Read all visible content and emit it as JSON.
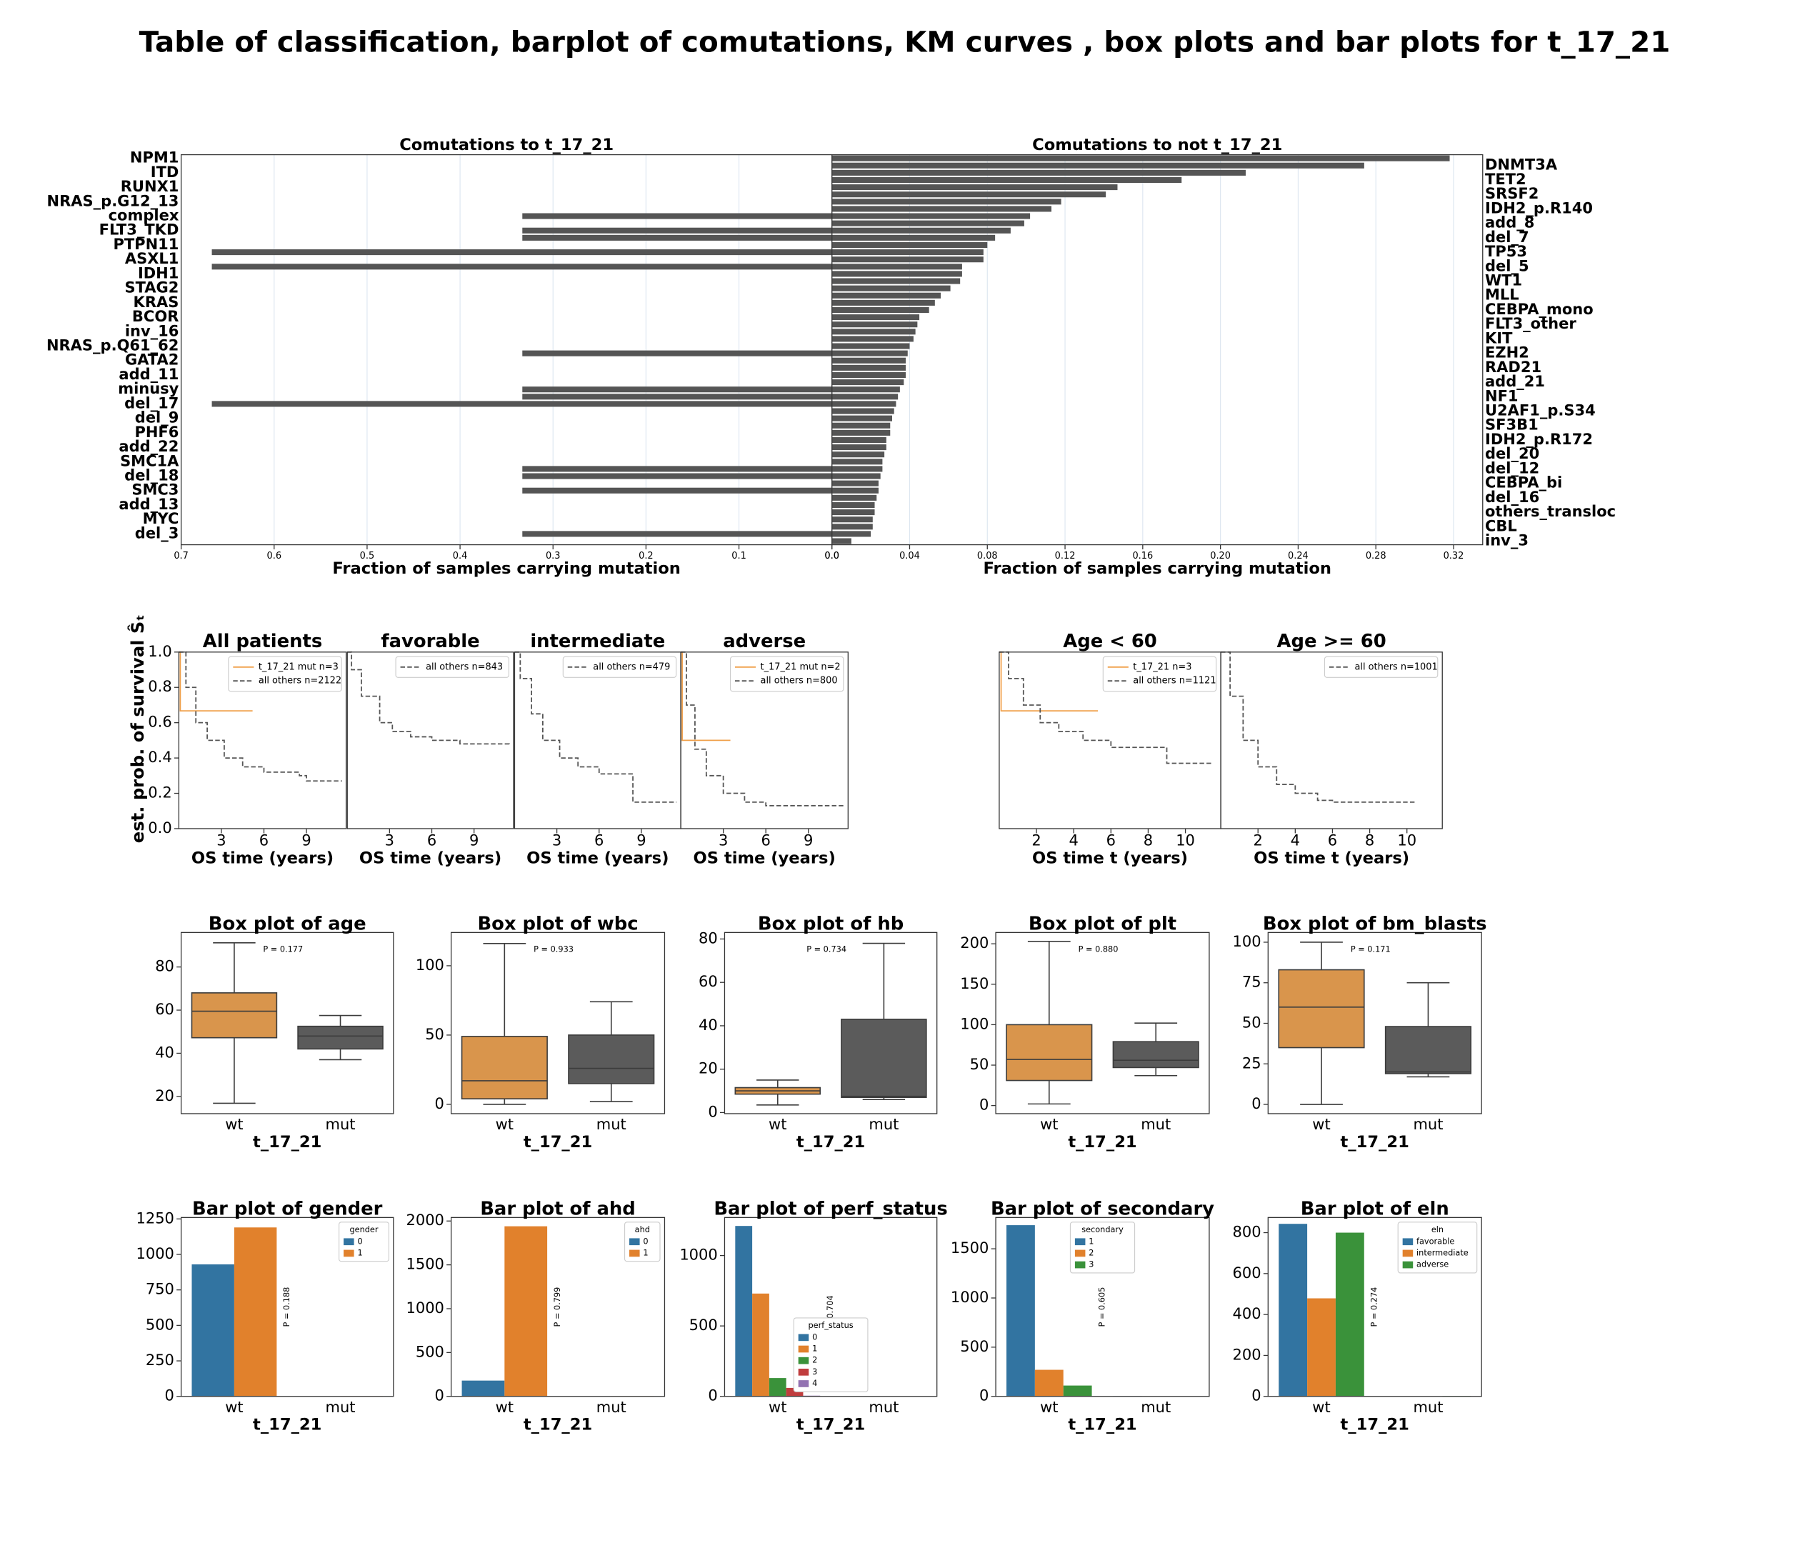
{
  "title": "Table of classification, barplot of comutations, KM curves , box plots and bar plots for t_17_21",
  "chart_data": [
    {
      "type": "comutation",
      "categories": [
        "NPM1",
        "DNMT3A",
        "ITD",
        "TET2",
        "RUNX1",
        "SRSF2",
        "NRAS_p.G12_13",
        "IDH2_p.R140",
        "complex",
        "add_8",
        "FLT3_TKD",
        "del_7",
        "PTPN11",
        "TP53",
        "ASXL1",
        "del_5",
        "IDH1",
        "WT1",
        "STAG2",
        "MLL",
        "KRAS",
        "CEBPA_mono",
        "BCOR",
        "FLT3_other",
        "inv_16",
        "KIT",
        "NRAS_p.Q61_62",
        "EZH2",
        "GATA2",
        "RAD21",
        "add_11",
        "add_21",
        "minusy",
        "NF1",
        "del_17",
        "U2AF1_p.S34",
        "del_9",
        "SF3B1",
        "PHF6",
        "IDH2_p.R172",
        "add_22",
        "del_20",
        "SMC1A",
        "del_12",
        "del_18",
        "CEBPA_bi",
        "SMC3",
        "del_16",
        "add_13",
        "others_transloc",
        "MYC",
        "CBL",
        "del_3",
        "inv_3"
      ],
      "color": "#555555",
      "left": {
        "title": "Comutations to t_17_21",
        "xlabel": "Fraction of samples carrying mutation",
        "xlim": [
          0.7,
          0
        ],
        "xticks": [
          0.7,
          0.6,
          0.5,
          0.4,
          0.3,
          0.2,
          0.1,
          {
            "value": 0,
            "label": "0.0"
          }
        ],
        "values": [
          0,
          0,
          0,
          0,
          0,
          0,
          0,
          0,
          0.333,
          0,
          0.333,
          0.333,
          0,
          0.667,
          0,
          0.667,
          0,
          0,
          0,
          0,
          0,
          0,
          0,
          0,
          0,
          0,
          0,
          0.333,
          0,
          0,
          0,
          0,
          0.333,
          0.333,
          0.667,
          0,
          0,
          0,
          0,
          0,
          0,
          0,
          0,
          0.333,
          0.333,
          0,
          0.333,
          0,
          0,
          0,
          0,
          0,
          0.333,
          0
        ]
      },
      "right": {
        "title": "Comutations to not t_17_21",
        "xlabel": "Fraction of samples carrying mutation",
        "xlim": [
          0,
          0.335
        ],
        "xticks": [
          {
            "value": 0,
            "label": "0.0"
          },
          0.04,
          0.08,
          0.12,
          0.16,
          {
            "value": 0.2,
            "label": "0.20"
          },
          0.24,
          0.28,
          0.32
        ],
        "values": [
          0.318,
          0.274,
          0.213,
          0.18,
          0.147,
          0.141,
          0.118,
          0.113,
          0.102,
          0.099,
          0.092,
          0.084,
          0.08,
          0.078,
          0.078,
          0.067,
          0.067,
          0.066,
          0.061,
          0.056,
          0.053,
          0.05,
          0.045,
          0.044,
          0.043,
          0.042,
          0.04,
          0.039,
          0.038,
          0.038,
          0.038,
          0.037,
          0.035,
          0.034,
          0.033,
          0.032,
          0.031,
          0.03,
          0.03,
          0.028,
          0.028,
          0.027,
          0.026,
          0.026,
          0.025,
          0.024,
          0.024,
          0.023,
          0.022,
          0.022,
          0.021,
          0.021,
          0.02,
          0.01
        ]
      }
    },
    {
      "type": "km",
      "title": "All patients",
      "xlabel": "OS time (years)",
      "ylabel": "est. prob. of survival Ŝₜ",
      "xlim": [
        0,
        11.8
      ],
      "ylim": [
        0,
        1
      ],
      "xticks": [
        3,
        6,
        9
      ],
      "yticks": [
        {
          "value": 0,
          "label": "0.0"
        },
        0.2,
        0.4,
        0.6,
        0.8,
        {
          "value": 1,
          "label": "1.0"
        }
      ],
      "legend": "upper right",
      "series": [
        {
          "name": "t_17_21  mut n=3",
          "color": "#f0a04b",
          "style": "solid",
          "x": [
            0,
            0.1,
            5.2
          ],
          "values": [
            1,
            0.667,
            0.667
          ]
        },
        {
          "name": "all others n=2122",
          "color": "#555555",
          "style": "dashed",
          "x": [
            0,
            0.5,
            1.2,
            2,
            3.2,
            4.5,
            6,
            8.5,
            9,
            11.5
          ],
          "values": [
            1,
            0.8,
            0.6,
            0.5,
            0.4,
            0.35,
            0.32,
            0.3,
            0.27,
            0.27
          ]
        }
      ]
    },
    {
      "type": "km",
      "title": "favorable",
      "xlabel": "OS time (years)",
      "xlim": [
        0,
        11.8
      ],
      "ylim": [
        0,
        1
      ],
      "xticks": [
        3,
        6,
        9
      ],
      "legend": "upper right",
      "series": [
        {
          "name": "all others n=843",
          "color": "#555555",
          "style": "dashed",
          "x": [
            0,
            0.3,
            1,
            2.3,
            3.2,
            4.5,
            6,
            8,
            11.5
          ],
          "values": [
            1,
            0.9,
            0.75,
            0.6,
            0.55,
            0.52,
            0.5,
            0.48,
            0.47
          ]
        }
      ]
    },
    {
      "type": "km",
      "title": "intermediate",
      "xlabel": "OS time (years)",
      "xlim": [
        0,
        11.8
      ],
      "ylim": [
        0,
        1
      ],
      "xticks": [
        3,
        6,
        9
      ],
      "legend": "upper right",
      "series": [
        {
          "name": "all others n=479",
          "color": "#555555",
          "style": "dashed",
          "x": [
            0,
            0.4,
            1.2,
            2,
            3.2,
            4.5,
            6,
            8.4,
            11.5
          ],
          "values": [
            1,
            0.85,
            0.65,
            0.5,
            0.4,
            0.35,
            0.31,
            0.15,
            0.15
          ]
        }
      ]
    },
    {
      "type": "km",
      "title": "adverse",
      "xlabel": "OS time (years)",
      "xlim": [
        0,
        11.8
      ],
      "ylim": [
        0,
        1
      ],
      "xticks": [
        3,
        6,
        9
      ],
      "legend": "upper right",
      "series": [
        {
          "name": "t_17_21  mut n=2",
          "color": "#f0a04b",
          "style": "solid",
          "x": [
            0,
            0.1,
            3.5
          ],
          "values": [
            1,
            0.5,
            0.5
          ]
        },
        {
          "name": "all others n=800",
          "color": "#555555",
          "style": "dashed",
          "x": [
            0,
            0.4,
            1,
            1.8,
            3,
            4.5,
            6,
            11.5
          ],
          "values": [
            1,
            0.7,
            0.45,
            0.3,
            0.2,
            0.15,
            0.13,
            0.12
          ]
        }
      ]
    },
    {
      "type": "km",
      "title": "Age < 60",
      "xlabel": "OS time t (years)",
      "xlim": [
        0,
        11.9
      ],
      "ylim": [
        0,
        1
      ],
      "xticks": [
        2,
        4,
        6,
        8,
        10
      ],
      "legend": "upper right",
      "series": [
        {
          "name": "t_17_21 n=3",
          "color": "#f0a04b",
          "style": "solid",
          "x": [
            0,
            0.1,
            5.3
          ],
          "values": [
            1,
            0.667,
            0.667
          ]
        },
        {
          "name": "all others n=1121",
          "color": "#555555",
          "style": "dashed",
          "x": [
            0,
            0.5,
            1.3,
            2.2,
            3.2,
            4.5,
            6,
            9,
            11.5
          ],
          "values": [
            1,
            0.85,
            0.7,
            0.6,
            0.55,
            0.5,
            0.46,
            0.37,
            0.37
          ]
        }
      ]
    },
    {
      "type": "km",
      "title": "Age >= 60",
      "xlabel": "OS time t (years)",
      "xlim": [
        0,
        11.9
      ],
      "ylim": [
        0,
        1
      ],
      "xticks": [
        2,
        4,
        6,
        8,
        10
      ],
      "legend": "upper right",
      "series": [
        {
          "name": "all others n=1001",
          "color": "#555555",
          "style": "dashed",
          "x": [
            0,
            0.5,
            1.2,
            2,
            3,
            4,
            5.2,
            6,
            10.5
          ],
          "values": [
            1,
            0.75,
            0.5,
            0.35,
            0.25,
            0.2,
            0.16,
            0.15,
            0.15
          ]
        }
      ]
    },
    {
      "type": "box",
      "title": "Box plot of age",
      "xlabel": "t_17_21",
      "categories": [
        "wt",
        "mut"
      ],
      "colors": [
        "#d9954c",
        "#5b5b5b"
      ],
      "annotation": "P = 0.177",
      "ylim": [
        12,
        96
      ],
      "yticks": [
        20,
        40,
        60,
        80
      ],
      "whisker_low": [
        16.8,
        37
      ],
      "q1": [
        47.2,
        42
      ],
      "median": [
        59.5,
        48
      ],
      "q3": [
        68,
        52.5
      ],
      "whisker_high": [
        91.2,
        57.5
      ]
    },
    {
      "type": "box",
      "title": "Box plot of wbc",
      "xlabel": "t_17_21",
      "categories": [
        "wt",
        "mut"
      ],
      "colors": [
        "#d9954c",
        "#5b5b5b"
      ],
      "annotation": "P = 0.933",
      "ylim": [
        -6.7,
        124
      ],
      "yticks": [
        0,
        50,
        100
      ],
      "whisker_low": [
        0,
        2
      ],
      "q1": [
        4,
        15
      ],
      "median": [
        17,
        26
      ],
      "q3": [
        49,
        50
      ],
      "whisker_high": [
        116,
        74
      ]
    },
    {
      "type": "box",
      "title": "Box plot of hb",
      "xlabel": "t_17_21",
      "categories": [
        "wt",
        "mut"
      ],
      "colors": [
        "#d9954c",
        "#5b5b5b"
      ],
      "annotation": "P = 0.734",
      "ylim": [
        -0.5,
        83
      ],
      "yticks": [
        0,
        20,
        40,
        60,
        80
      ],
      "whisker_low": [
        3.5,
        6
      ],
      "q1": [
        8.5,
        7
      ],
      "median": [
        10,
        7.5
      ],
      "q3": [
        11.5,
        43
      ],
      "whisker_high": [
        15,
        78
      ]
    },
    {
      "type": "box",
      "title": "Box plot of plt",
      "xlabel": "t_17_21",
      "categories": [
        "wt",
        "mut"
      ],
      "colors": [
        "#d9954c",
        "#5b5b5b"
      ],
      "annotation": "P = 0.880",
      "ylim": [
        -10,
        214
      ],
      "yticks": [
        0,
        50,
        100,
        150,
        200
      ],
      "whisker_low": [
        2,
        37
      ],
      "q1": [
        31,
        47
      ],
      "median": [
        57,
        56
      ],
      "q3": [
        100,
        79
      ],
      "whisker_high": [
        203,
        102
      ]
    },
    {
      "type": "box",
      "title": "Box plot of bm_blasts",
      "xlabel": "t_17_21",
      "categories": [
        "wt",
        "mut"
      ],
      "colors": [
        "#d9954c",
        "#5b5b5b"
      ],
      "annotation": "P = 0.171",
      "ylim": [
        -5.7,
        106
      ],
      "yticks": [
        0,
        25,
        50,
        75,
        100
      ],
      "whisker_low": [
        0,
        17
      ],
      "q1": [
        35,
        19
      ],
      "median": [
        60,
        20
      ],
      "q3": [
        83,
        48
      ],
      "whisker_high": [
        100,
        75
      ]
    },
    {
      "type": "grouped_bar",
      "title": "Bar plot of gender",
      "xlabel": "t_17_21",
      "categories": [
        "wt",
        "mut"
      ],
      "legend_title": "gender",
      "legend": "upper right",
      "annotation": "P = 0.188",
      "ylim": [
        0,
        1260
      ],
      "yticks": [
        0,
        250,
        500,
        750,
        1000,
        1250
      ],
      "series": [
        {
          "name": "0",
          "color": "#3274a1",
          "values": [
            930,
            0
          ]
        },
        {
          "name": "1",
          "color": "#e1812c",
          "values": [
            1190,
            2
          ]
        }
      ]
    },
    {
      "type": "grouped_bar",
      "title": "Bar plot of ahd",
      "xlabel": "t_17_21",
      "categories": [
        "wt",
        "mut"
      ],
      "legend_title": "ahd",
      "legend": "upper right",
      "annotation": "P = 0.799",
      "ylim": [
        0,
        2040
      ],
      "yticks": [
        0,
        500,
        1000,
        1500,
        2000
      ],
      "series": [
        {
          "name": "0",
          "color": "#3274a1",
          "values": [
            180,
            0
          ]
        },
        {
          "name": "1",
          "color": "#e1812c",
          "values": [
            1940,
            3
          ]
        }
      ]
    },
    {
      "type": "grouped_bar",
      "title": "Bar plot of perf_status",
      "xlabel": "t_17_21",
      "categories": [
        "wt",
        "mut"
      ],
      "legend_title": "perf_status",
      "legend": "lower center",
      "annotation": "0.704",
      "ylim": [
        0,
        1270
      ],
      "yticks": [
        0,
        500,
        1000
      ],
      "series": [
        {
          "name": "0",
          "color": "#3274a1",
          "values": [
            1210,
            0
          ]
        },
        {
          "name": "1",
          "color": "#e1812c",
          "values": [
            730,
            0
          ]
        },
        {
          "name": "2",
          "color": "#3a923a",
          "values": [
            130,
            0
          ]
        },
        {
          "name": "3",
          "color": "#c03d3e",
          "values": [
            60,
            0
          ]
        },
        {
          "name": "4",
          "color": "#9372b2",
          "values": [
            5,
            0
          ]
        }
      ]
    },
    {
      "type": "grouped_bar",
      "title": "Bar plot of secondary",
      "xlabel": "t_17_21",
      "categories": [
        "wt",
        "mut"
      ],
      "legend_title": "secondary",
      "legend": "upper center",
      "annotation": "P = 0.605",
      "ylim": [
        0,
        1818
      ],
      "yticks": [
        0,
        500,
        1000,
        1500
      ],
      "series": [
        {
          "name": "1",
          "color": "#3274a1",
          "values": [
            1740,
            3
          ]
        },
        {
          "name": "2",
          "color": "#e1812c",
          "values": [
            270,
            0
          ]
        },
        {
          "name": "3",
          "color": "#3a923a",
          "values": [
            110,
            0
          ]
        }
      ]
    },
    {
      "type": "grouped_bar",
      "title": "Bar plot of eln",
      "xlabel": "t_17_21",
      "categories": [
        "wt",
        "mut"
      ],
      "legend_title": "eln",
      "legend": "upper right",
      "annotation": "P = 0.274",
      "ylim": [
        0,
        874
      ],
      "yticks": [
        0,
        200,
        400,
        600,
        800
      ],
      "series": [
        {
          "name": "favorable",
          "color": "#3274a1",
          "values": [
            843,
            0
          ]
        },
        {
          "name": "intermediate",
          "color": "#e1812c",
          "values": [
            479,
            0
          ]
        },
        {
          "name": "adverse",
          "color": "#3a923a",
          "values": [
            800,
            2
          ]
        }
      ]
    }
  ]
}
